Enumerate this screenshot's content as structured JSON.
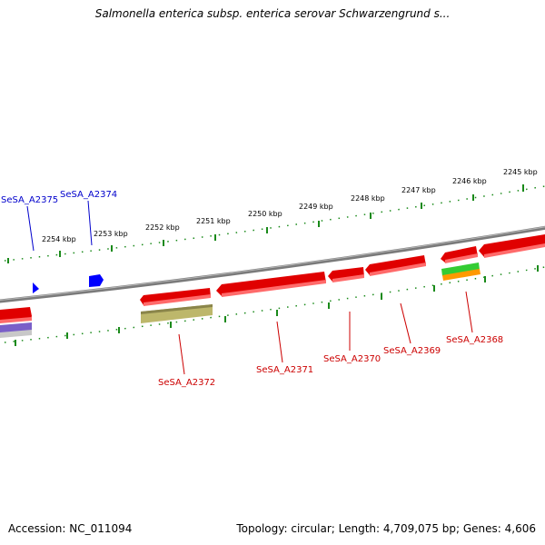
{
  "title": "Salmonella enterica subsp. enterica serovar Schwarzengrund s...",
  "footer": {
    "accession": "Accession: NC_011094",
    "summary": "Topology: circular; Length: 4,709,075 bp; Genes: 4,606"
  },
  "ruler_labels": [
    "2254 kbp",
    "2253 kbp",
    "2252 kbp",
    "2251 kbp",
    "2250 kbp",
    "2249 kbp",
    "2248 kbp",
    "2247 kbp",
    "2246 kbp",
    "2245 kbp"
  ],
  "gene_labels": {
    "top": [
      "SeSA_A2375",
      "SeSA_A2374"
    ],
    "bottom": [
      "SeSA_A2372",
      "SeSA_A2371",
      "SeSA_A2370",
      "SeSA_A2369",
      "SeSA_A2368"
    ]
  },
  "colors": {
    "forward_gene": "#ff0000",
    "reverse_gene": "#ff0000",
    "small_forward": "#0000ff",
    "cds_olive": "#bdb76b",
    "rna_green": "#33cc33",
    "rna_orange": "#ff9900",
    "backbone": "#808080",
    "ruler": "#1a8a1a",
    "label_top": "#0000cc",
    "label_bottom": "#cc0000"
  }
}
